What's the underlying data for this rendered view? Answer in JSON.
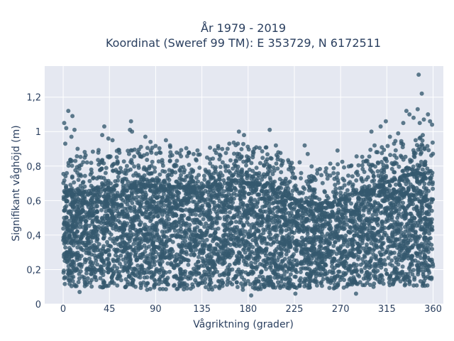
{
  "chart_data": {
    "type": "scatter",
    "title_line1": "År 1979 - 2019",
    "title_line2": "Koordinat (Sweref 99 TM): E 353729, N 6172511",
    "xlabel": "Vågriktning (grader)",
    "ylabel": "Signifikant våghöjd (m)",
    "xlim": [
      -18,
      370
    ],
    "ylim": [
      0,
      1.38
    ],
    "x_ticks": [
      0,
      45,
      90,
      135,
      180,
      225,
      270,
      315,
      360
    ],
    "x_tick_labels": [
      "0",
      "45",
      "90",
      "135",
      "180",
      "225",
      "270",
      "315",
      "360"
    ],
    "y_ticks": [
      0,
      0.2,
      0.4,
      0.6,
      0.8,
      1.0,
      1.2
    ],
    "y_tick_labels": [
      "0",
      "0,2",
      "0,4",
      "0,6",
      "0,8",
      "1",
      "1,2"
    ],
    "grid": true,
    "marker_color": "#34586e",
    "plot_bg": "#e5e8f1",
    "envelope": {
      "directions": [
        0,
        15,
        30,
        45,
        60,
        75,
        90,
        105,
        120,
        135,
        150,
        165,
        180,
        195,
        210,
        225,
        240,
        255,
        270,
        285,
        300,
        315,
        330,
        345,
        360
      ],
      "dense_upper": [
        0.62,
        0.64,
        0.66,
        0.66,
        0.67,
        0.68,
        0.68,
        0.68,
        0.67,
        0.67,
        0.69,
        0.7,
        0.7,
        0.69,
        0.65,
        0.6,
        0.58,
        0.58,
        0.6,
        0.64,
        0.66,
        0.7,
        0.74,
        0.76,
        0.7
      ],
      "dense_lower": [
        0.1,
        0.1,
        0.1,
        0.09,
        0.09,
        0.08,
        0.08,
        0.08,
        0.08,
        0.08,
        0.08,
        0.08,
        0.08,
        0.08,
        0.09,
        0.09,
        0.09,
        0.09,
        0.09,
        0.09,
        0.1,
        0.1,
        0.1,
        0.1,
        0.1
      ]
    },
    "outliers": [
      {
        "x": 5,
        "y": 1.12
      },
      {
        "x": 9,
        "y": 1.09
      },
      {
        "x": 1,
        "y": 1.05
      },
      {
        "x": 3,
        "y": 1.02
      },
      {
        "x": 11,
        "y": 1.01
      },
      {
        "x": 8,
        "y": 0.97
      },
      {
        "x": 2,
        "y": 0.93
      },
      {
        "x": 14,
        "y": 0.9
      },
      {
        "x": 40,
        "y": 1.03
      },
      {
        "x": 38,
        "y": 0.98
      },
      {
        "x": 44,
        "y": 0.96
      },
      {
        "x": 48,
        "y": 0.95
      },
      {
        "x": 66,
        "y": 1.06
      },
      {
        "x": 67,
        "y": 1.0
      },
      {
        "x": 65,
        "y": 1.01
      },
      {
        "x": 80,
        "y": 0.97
      },
      {
        "x": 85,
        "y": 0.94
      },
      {
        "x": 100,
        "y": 0.95
      },
      {
        "x": 104,
        "y": 0.92
      },
      {
        "x": 160,
        "y": 0.9
      },
      {
        "x": 170,
        "y": 0.93
      },
      {
        "x": 171,
        "y": 1.0
      },
      {
        "x": 176,
        "y": 0.98
      },
      {
        "x": 186,
        "y": 0.9
      },
      {
        "x": 201,
        "y": 1.01
      },
      {
        "x": 207,
        "y": 0.92
      },
      {
        "x": 235,
        "y": 0.92
      },
      {
        "x": 238,
        "y": 0.87
      },
      {
        "x": 267,
        "y": 0.89
      },
      {
        "x": 296,
        "y": 0.83
      },
      {
        "x": 300,
        "y": 1.0
      },
      {
        "x": 303,
        "y": 0.92
      },
      {
        "x": 309,
        "y": 1.03
      },
      {
        "x": 314,
        "y": 1.06
      },
      {
        "x": 318,
        "y": 0.97
      },
      {
        "x": 322,
        "y": 0.93
      },
      {
        "x": 326,
        "y": 0.99
      },
      {
        "x": 331,
        "y": 1.05
      },
      {
        "x": 334,
        "y": 1.12
      },
      {
        "x": 337,
        "y": 1.1
      },
      {
        "x": 341,
        "y": 1.08
      },
      {
        "x": 345,
        "y": 1.13
      },
      {
        "x": 347,
        "y": 1.05
      },
      {
        "x": 349,
        "y": 1.22
      },
      {
        "x": 351,
        "y": 1.07
      },
      {
        "x": 355,
        "y": 1.1
      },
      {
        "x": 357,
        "y": 1.06
      },
      {
        "x": 359,
        "y": 1.04
      },
      {
        "x": 350,
        "y": 0.98
      },
      {
        "x": 343,
        "y": 0.95
      },
      {
        "x": 346,
        "y": 1.33
      },
      {
        "x": 183,
        "y": 0.05
      },
      {
        "x": 16,
        "y": 0.07
      },
      {
        "x": 285,
        "y": 0.06
      },
      {
        "x": 226,
        "y": 0.06
      }
    ]
  }
}
